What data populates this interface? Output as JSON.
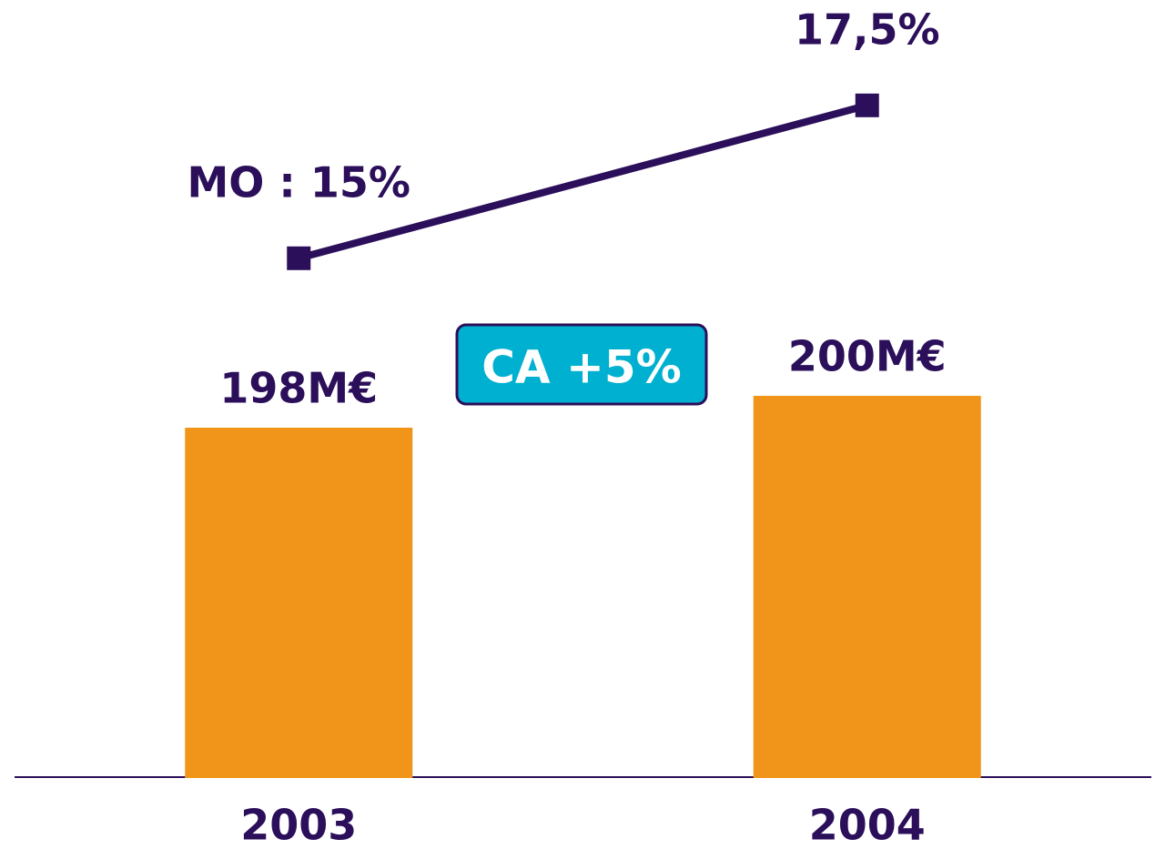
{
  "chart_data": {
    "type": "bar-line",
    "categories": [
      "2003",
      "2004"
    ],
    "series": [
      {
        "type": "bar",
        "color": "#f0951a",
        "values": [
          198,
          200
        ],
        "value_labels": [
          "198M€",
          "200M€"
        ]
      },
      {
        "type": "line",
        "axis": "y2",
        "color": "#2b0f5a",
        "values": [
          15,
          17.5
        ],
        "value_labels": [
          "MO : 15%",
          "17,5%"
        ]
      }
    ],
    "ylim": [
      176,
      224
    ],
    "y2lim": [
      6.5,
      19
    ],
    "annotation": "CA +5%",
    "annotation_color": "#00b0d0"
  }
}
